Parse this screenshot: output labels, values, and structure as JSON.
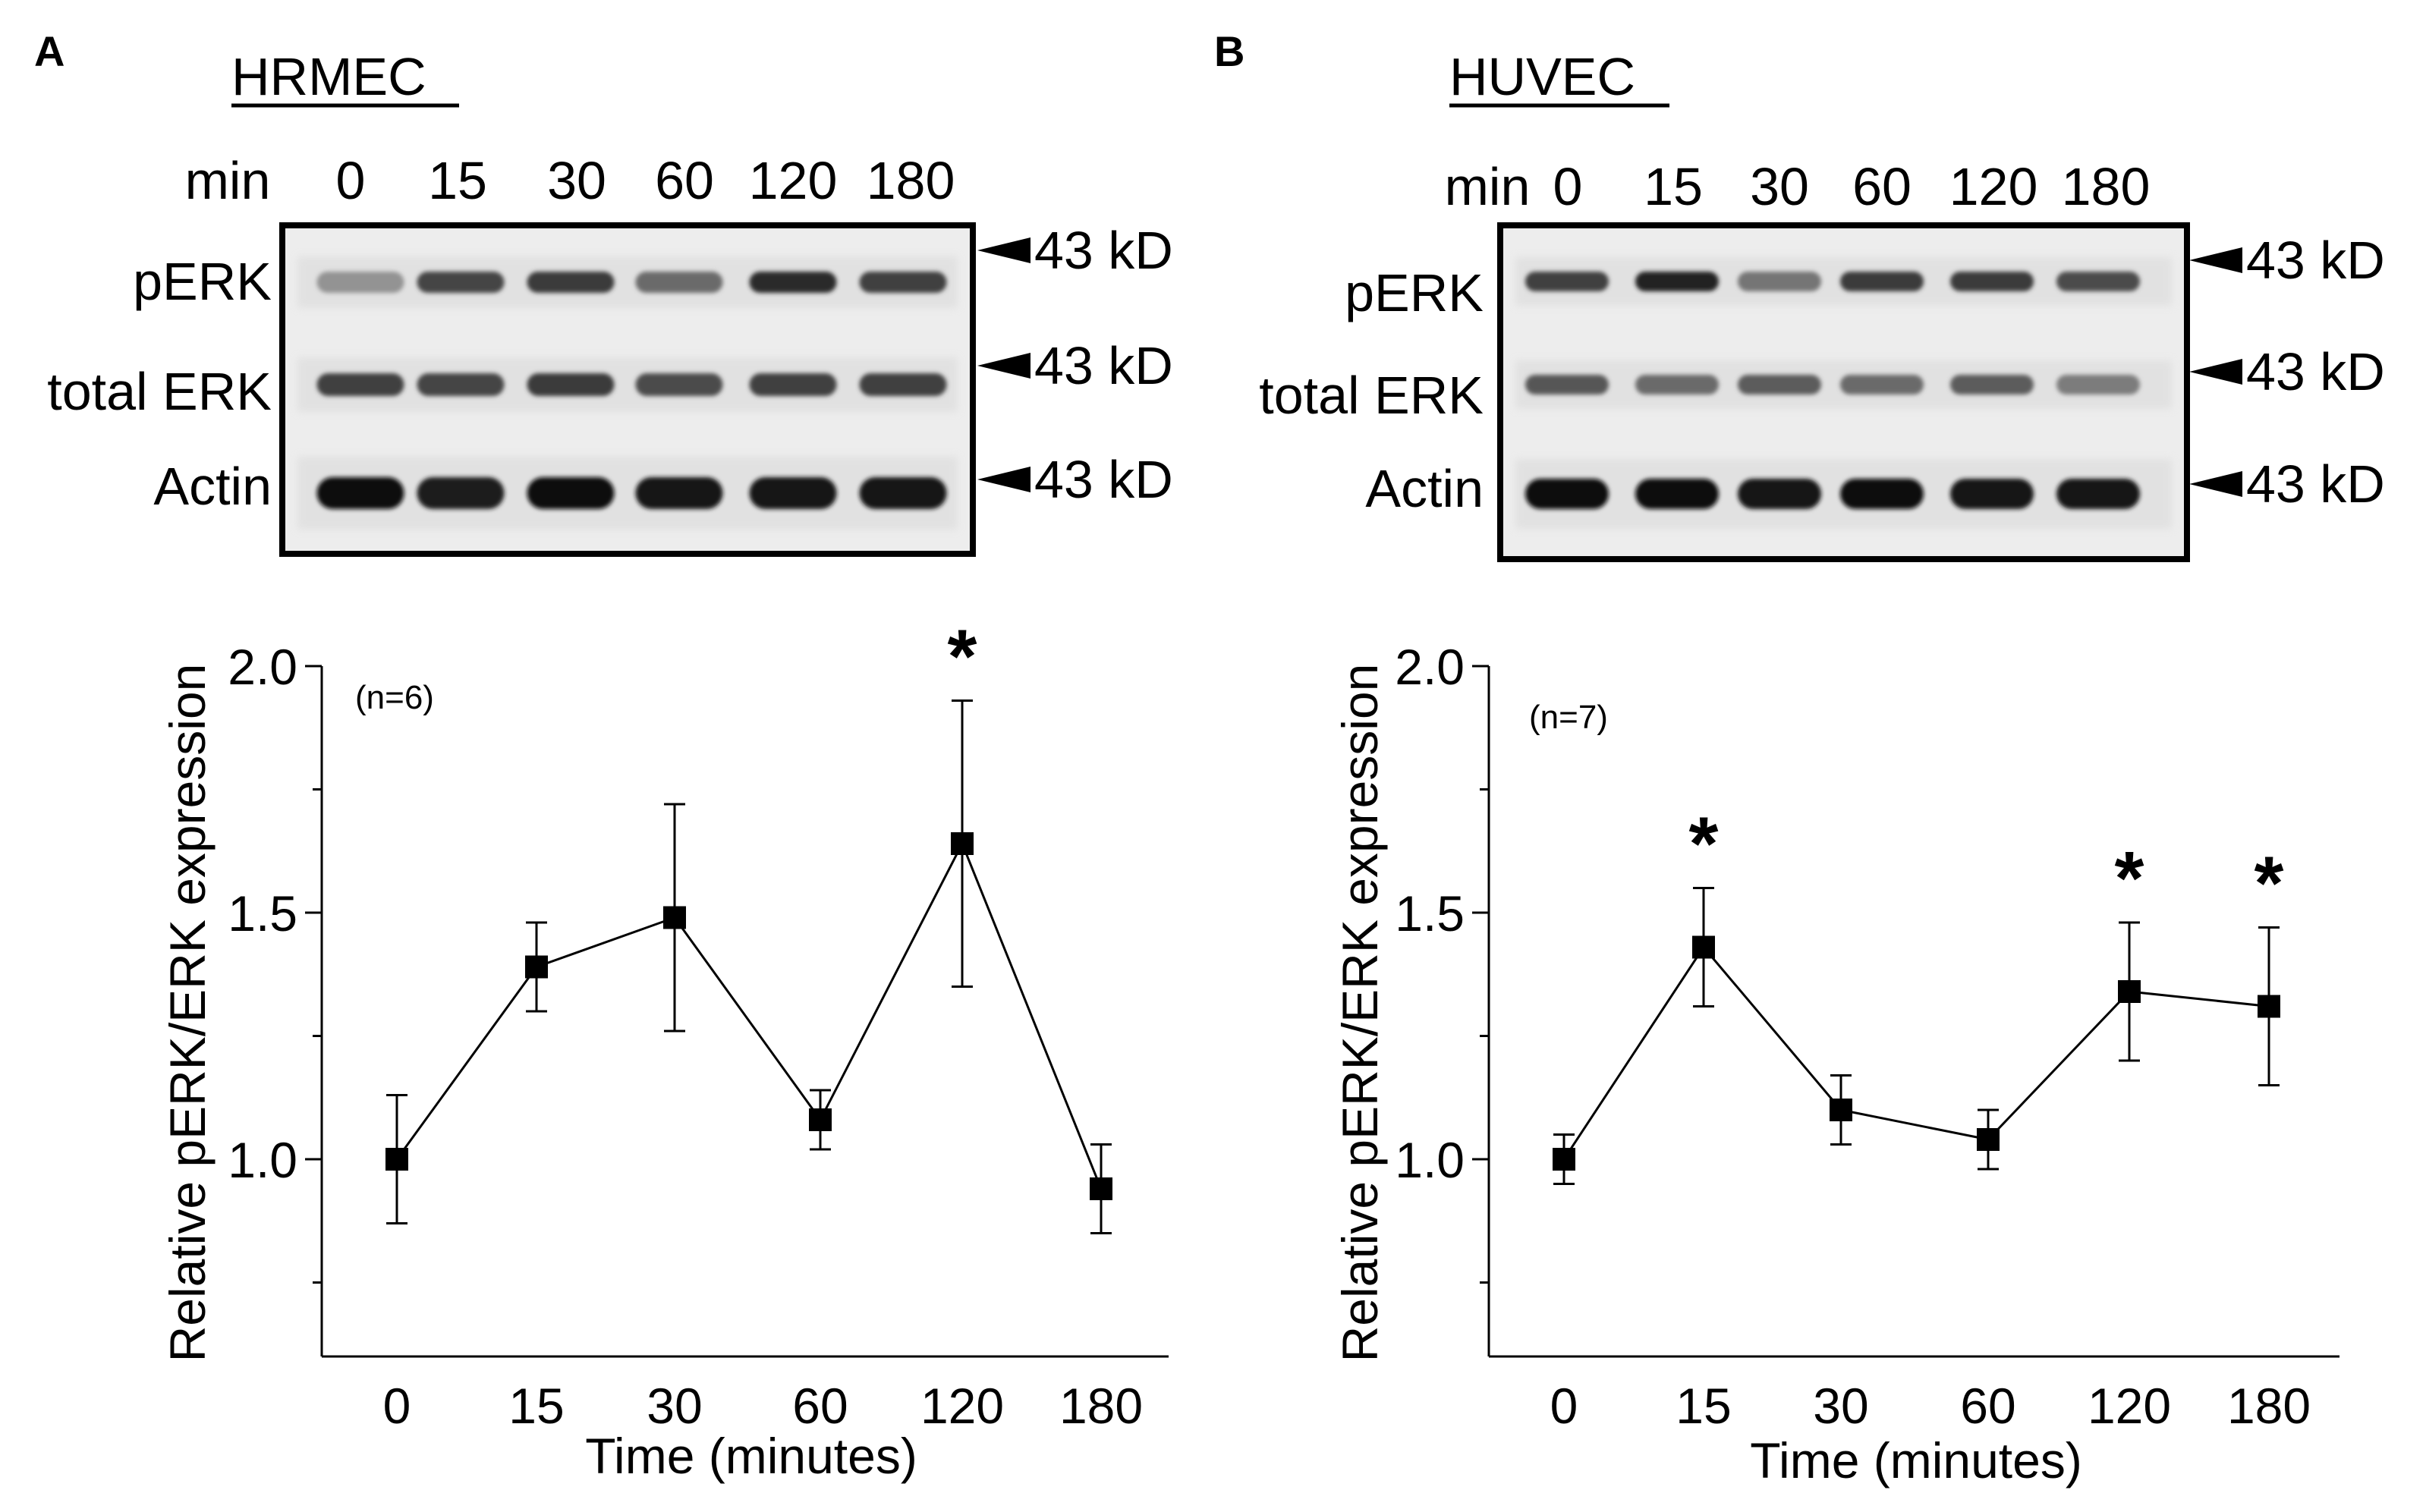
{
  "panels": [
    {
      "label": "A",
      "title": "HRMEC",
      "blot": {
        "time_header": "min",
        "times": [
          "0",
          "15",
          "30",
          "60",
          "120",
          "180"
        ],
        "rows": [
          {
            "label": "pERK",
            "intensity": [
              0.45,
              0.78,
              0.82,
              0.62,
              0.88,
              0.8
            ]
          },
          {
            "label": "total ERK",
            "intensity": [
              0.8,
              0.78,
              0.82,
              0.75,
              0.8,
              0.8
            ]
          },
          {
            "label": "Actin",
            "intensity": [
              1.0,
              0.95,
              1.0,
              0.97,
              0.97,
              0.97
            ]
          }
        ],
        "marker_labels": [
          "43 kD",
          "43 kD",
          "43 kD"
        ]
      },
      "n_label": "(n=6)",
      "chart_data": {
        "type": "line",
        "title": "",
        "xlabel": "Time (minutes)",
        "ylabel": "Relative pERK/ERK expression",
        "categories": [
          "0",
          "15",
          "30",
          "60",
          "120",
          "180"
        ],
        "values": [
          1.0,
          1.39,
          1.49,
          1.08,
          1.64,
          0.94
        ],
        "errors": [
          0.13,
          0.09,
          0.23,
          0.06,
          0.29,
          0.09
        ],
        "significance": [
          "",
          "",
          "",
          "",
          "*",
          ""
        ],
        "ylim": [
          0.6,
          2.0
        ],
        "yticks": [
          "1.0",
          "1.5",
          "2.0"
        ],
        "ytick_values": [
          1.0,
          1.5,
          2.0
        ],
        "minor_yticks": [
          0.75,
          1.25,
          1.75
        ]
      }
    },
    {
      "label": "B",
      "title": "HUVEC",
      "blot": {
        "time_header": "min",
        "times": [
          "0",
          "15",
          "30",
          "60",
          "120",
          "180"
        ],
        "rows": [
          {
            "label": "pERK",
            "intensity": [
              0.8,
              0.92,
              0.58,
              0.82,
              0.82,
              0.75
            ]
          },
          {
            "label": "total ERK",
            "intensity": [
              0.7,
              0.62,
              0.68,
              0.62,
              0.68,
              0.55
            ]
          },
          {
            "label": "Actin",
            "intensity": [
              1.0,
              1.0,
              0.97,
              1.0,
              0.97,
              0.97
            ]
          }
        ],
        "marker_labels": [
          "43 kD",
          "43 kD",
          "43 kD"
        ]
      },
      "n_label": "(n=7)",
      "chart_data": {
        "type": "line",
        "title": "",
        "xlabel": "Time (minutes)",
        "ylabel": "Relative pERK/ERK expression",
        "categories": [
          "0",
          "15",
          "30",
          "60",
          "120",
          "180"
        ],
        "values": [
          1.0,
          1.43,
          1.1,
          1.04,
          1.34,
          1.31
        ],
        "errors": [
          0.05,
          0.12,
          0.07,
          0.06,
          0.14,
          0.16
        ],
        "significance": [
          "",
          "*",
          "",
          "",
          "*",
          "*"
        ],
        "ylim": [
          0.6,
          2.0
        ],
        "yticks": [
          "1.0",
          "1.5",
          "2.0"
        ],
        "ytick_values": [
          1.0,
          1.5,
          2.0
        ],
        "minor_yticks": [
          0.75,
          1.25,
          1.75
        ]
      }
    }
  ]
}
